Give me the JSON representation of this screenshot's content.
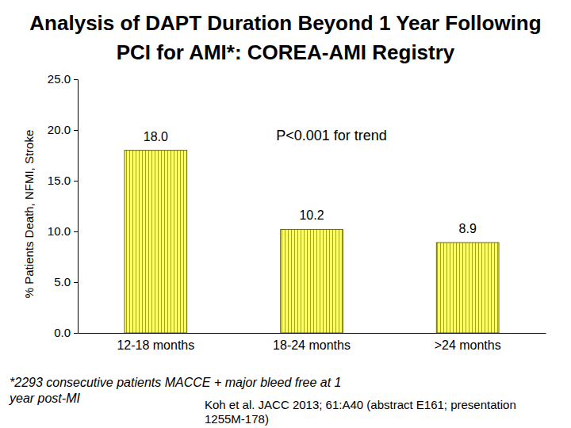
{
  "chart_data": {
    "type": "bar",
    "title": [
      "Analysis of DAPT Duration Beyond 1 Year Following",
      "PCI for AMI*:  COREA-AMI Registry"
    ],
    "y_label": "% Patients Death, NFMI, Stroke",
    "categories": [
      "12-18 months",
      "18-24 months",
      ">24 months"
    ],
    "values": [
      18.0,
      10.2,
      8.9
    ],
    "value_labels": [
      "18.0",
      "10.2",
      "8.9"
    ],
    "data_labels": true,
    "color": "#ffff66",
    "ylim": [
      0,
      25
    ],
    "yticks": [
      {
        "value": 0,
        "label": "0.0"
      },
      {
        "value": 5,
        "label": "5.0"
      },
      {
        "value": 10,
        "label": "10.0"
      },
      {
        "value": 15,
        "label": "15.0"
      },
      {
        "value": 20,
        "label": "20.0"
      },
      {
        "value": 25,
        "label": "25.0"
      }
    ],
    "grid": false,
    "annotations": [
      "P<0.001 for trend"
    ],
    "footnote": [
      "*2293 consecutive patients MACCE + major bleed free at 1",
      "year post-MI"
    ],
    "source": [
      "Koh et al. JACC 2013; 61:A40 (abstract E161; presentation",
      "1255M-178)"
    ]
  }
}
